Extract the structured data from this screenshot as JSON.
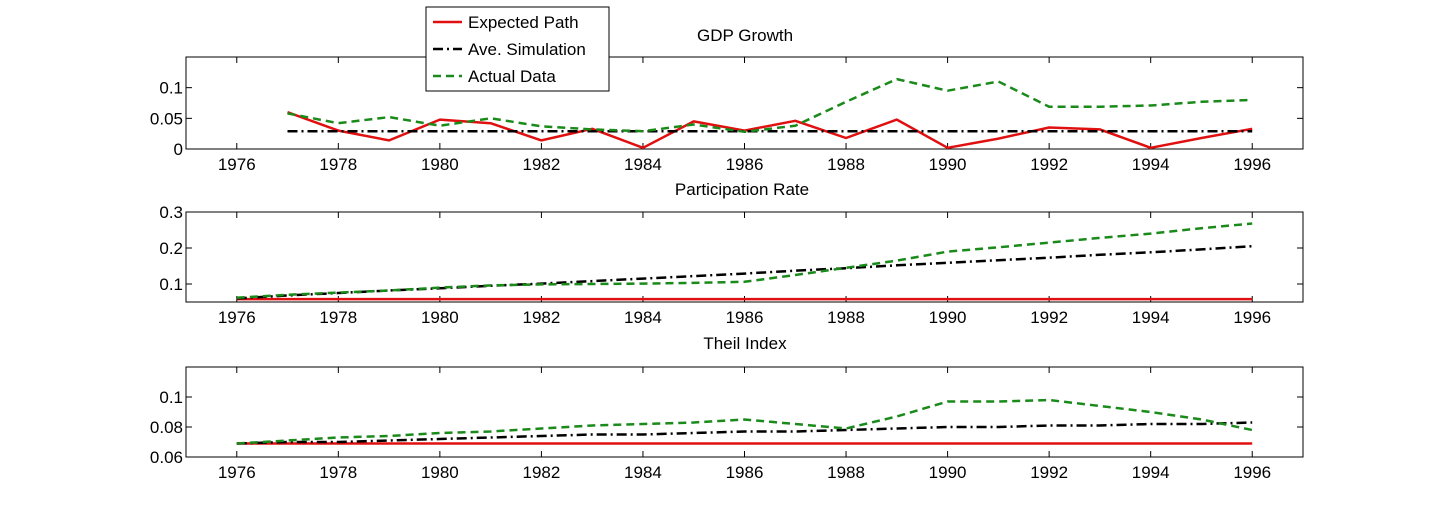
{
  "chart_data": [
    {
      "type": "line",
      "title": "GDP Growth",
      "x_ticks": [
        1976,
        1978,
        1980,
        1982,
        1984,
        1986,
        1988,
        1990,
        1992,
        1994,
        1996
      ],
      "y_ticks": [
        0,
        0.05,
        0.1
      ],
      "y_tick_labels": [
        "0",
        "0.05",
        "0.1"
      ],
      "xlim": [
        1975,
        1997
      ],
      "ylim": [
        0,
        0.15
      ],
      "x": [
        1977,
        1978,
        1979,
        1980,
        1981,
        1982,
        1983,
        1984,
        1985,
        1986,
        1987,
        1988,
        1989,
        1990,
        1991,
        1992,
        1993,
        1994,
        1995,
        1996
      ],
      "series": [
        {
          "name": "Expected Path",
          "color": "#e01010",
          "style": "solid",
          "values": [
            0.06,
            0.03,
            0.014,
            0.048,
            0.042,
            0.014,
            0.033,
            0.002,
            0.045,
            0.03,
            0.046,
            0.018,
            0.048,
            0.002,
            0.017,
            0.035,
            0.032,
            0.002,
            0.018,
            0.033
          ]
        },
        {
          "name": "Ave. Simulation",
          "color": "#000000",
          "style": "dashdot",
          "values": [
            0.029,
            0.029,
            0.029,
            0.029,
            0.029,
            0.029,
            0.029,
            0.029,
            0.029,
            0.029,
            0.029,
            0.029,
            0.029,
            0.029,
            0.029,
            0.029,
            0.029,
            0.029,
            0.029,
            0.029
          ]
        },
        {
          "name": "Actual Data",
          "color": "#1a8a1a",
          "style": "dashed",
          "values": [
            0.058,
            0.042,
            0.052,
            0.038,
            0.05,
            0.037,
            0.032,
            0.029,
            0.04,
            0.028,
            0.038,
            0.077,
            0.114,
            0.095,
            0.11,
            0.069,
            0.069,
            0.071,
            0.077,
            0.08
          ]
        }
      ]
    },
    {
      "type": "line",
      "title": "Participation Rate",
      "x_ticks": [
        1976,
        1978,
        1980,
        1982,
        1984,
        1986,
        1988,
        1990,
        1992,
        1994,
        1996
      ],
      "y_ticks": [
        0.1,
        0.2,
        0.3
      ],
      "y_tick_labels": [
        "0.1",
        "0.2",
        "0.3"
      ],
      "xlim": [
        1975,
        1997
      ],
      "ylim": [
        0.05,
        0.3
      ],
      "x": [
        1976,
        1977,
        1978,
        1979,
        1980,
        1981,
        1982,
        1983,
        1984,
        1985,
        1986,
        1987,
        1988,
        1989,
        1990,
        1991,
        1992,
        1993,
        1994,
        1995,
        1996
      ],
      "series": [
        {
          "name": "Expected Path",
          "color": "#e01010",
          "style": "solid",
          "values": [
            0.058,
            0.058,
            0.058,
            0.058,
            0.058,
            0.058,
            0.058,
            0.058,
            0.058,
            0.058,
            0.058,
            0.058,
            0.058,
            0.058,
            0.058,
            0.058,
            0.058,
            0.058,
            0.058,
            0.058,
            0.058
          ]
        },
        {
          "name": "Ave. Simulation",
          "color": "#000000",
          "style": "dashdot",
          "values": [
            0.06,
            0.068,
            0.075,
            0.082,
            0.088,
            0.095,
            0.101,
            0.108,
            0.115,
            0.122,
            0.129,
            0.137,
            0.144,
            0.152,
            0.159,
            0.166,
            0.173,
            0.181,
            0.188,
            0.196,
            0.205
          ]
        },
        {
          "name": "Actual Data",
          "color": "#1a8a1a",
          "style": "dashed",
          "values": [
            0.062,
            0.07,
            0.076,
            0.082,
            0.09,
            0.096,
            0.099,
            0.1,
            0.101,
            0.103,
            0.106,
            0.125,
            0.145,
            0.165,
            0.19,
            0.202,
            0.215,
            0.228,
            0.24,
            0.255,
            0.268
          ]
        }
      ]
    },
    {
      "type": "line",
      "title": "Theil Index",
      "x_ticks": [
        1976,
        1978,
        1980,
        1982,
        1984,
        1986,
        1988,
        1990,
        1992,
        1994,
        1996
      ],
      "y_ticks": [
        0.06,
        0.08,
        0.1
      ],
      "y_tick_labels": [
        "0.06",
        "0.08",
        "0.1"
      ],
      "xlim": [
        1975,
        1997
      ],
      "ylim": [
        0.06,
        0.12
      ],
      "x": [
        1976,
        1977,
        1978,
        1979,
        1980,
        1981,
        1982,
        1983,
        1984,
        1985,
        1986,
        1987,
        1988,
        1989,
        1990,
        1991,
        1992,
        1993,
        1994,
        1995,
        1996
      ],
      "series": [
        {
          "name": "Expected Path",
          "color": "#e01010",
          "style": "solid",
          "values": [
            0.069,
            0.069,
            0.069,
            0.069,
            0.069,
            0.069,
            0.069,
            0.069,
            0.069,
            0.069,
            0.069,
            0.069,
            0.069,
            0.069,
            0.069,
            0.069,
            0.069,
            0.069,
            0.069,
            0.069,
            0.069
          ]
        },
        {
          "name": "Ave. Simulation",
          "color": "#000000",
          "style": "dashdot",
          "values": [
            0.069,
            0.07,
            0.07,
            0.071,
            0.072,
            0.073,
            0.074,
            0.075,
            0.075,
            0.076,
            0.077,
            0.077,
            0.078,
            0.079,
            0.08,
            0.08,
            0.081,
            0.081,
            0.082,
            0.082,
            0.083
          ]
        },
        {
          "name": "Actual Data",
          "color": "#1a8a1a",
          "style": "dashed",
          "values": [
            0.069,
            0.071,
            0.073,
            0.074,
            0.076,
            0.077,
            0.079,
            0.081,
            0.082,
            0.083,
            0.085,
            0.082,
            0.079,
            0.087,
            0.097,
            0.097,
            0.098,
            0.094,
            0.09,
            0.085,
            0.078
          ]
        }
      ]
    }
  ],
  "legend": {
    "placement": "top-left, overlapping first subplot",
    "entries": [
      {
        "label": "Expected Path",
        "color": "#e01010",
        "style": "solid"
      },
      {
        "label": "Ave. Simulation",
        "color": "#000000",
        "style": "dashdot"
      },
      {
        "label": "Actual Data",
        "color": "#1a8a1a",
        "style": "dashed"
      }
    ]
  }
}
